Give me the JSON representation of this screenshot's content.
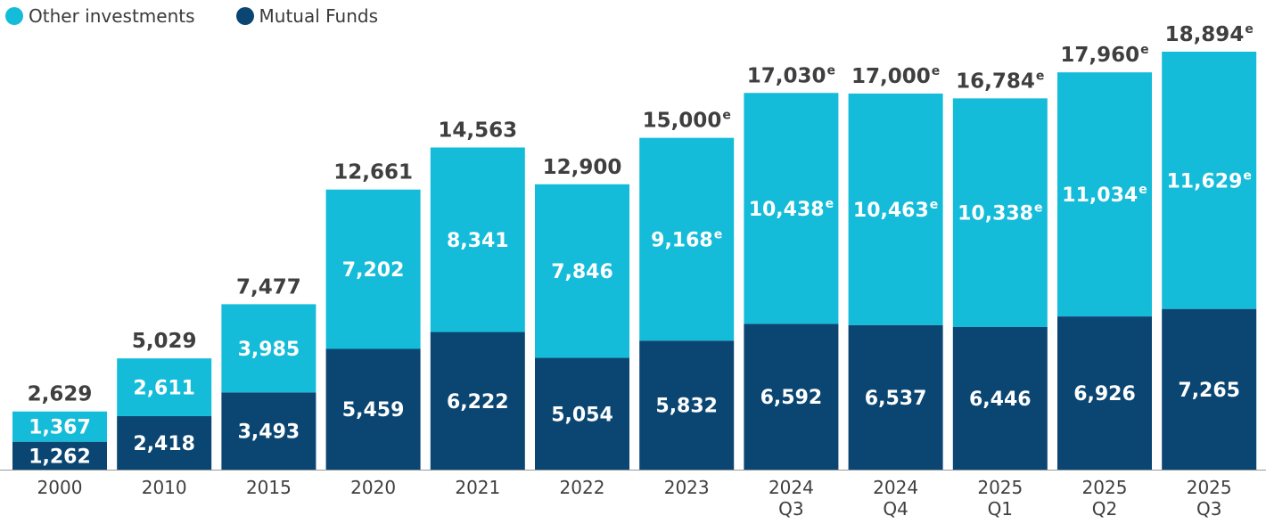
{
  "colors": {
    "other": "#14bcd9",
    "mutual": "#0b4672",
    "axis": "#9a9a9a"
  },
  "legend": [
    {
      "label": "Other investments",
      "color_key": "other"
    },
    {
      "label": "Mutual Funds",
      "color_key": "mutual"
    }
  ],
  "chart_data": {
    "type": "bar",
    "stacked": true,
    "title": "",
    "xlabel": "",
    "ylabel": "",
    "ylim": [
      0,
      19000
    ],
    "grid": false,
    "legend_position": "top-left",
    "estimate_marker": "e",
    "categories": [
      [
        "2000"
      ],
      [
        "2010"
      ],
      [
        "2015"
      ],
      [
        "2020"
      ],
      [
        "2021"
      ],
      [
        "2022"
      ],
      [
        "2023"
      ],
      [
        "2024",
        "Q3"
      ],
      [
        "2024",
        "Q4"
      ],
      [
        "2025",
        "Q1"
      ],
      [
        "2025",
        "Q2"
      ],
      [
        "2025",
        "Q3"
      ]
    ],
    "series": [
      {
        "name": "Mutual Funds",
        "values": [
          1262,
          2418,
          3493,
          5459,
          6222,
          5054,
          5832,
          6592,
          6537,
          6446,
          6926,
          7265
        ],
        "labels": [
          "1,262",
          "2,418",
          "3,493",
          "5,459",
          "6,222",
          "5,054",
          "5,832",
          "6,592",
          "6,537",
          "6,446",
          "6,926",
          "7,265"
        ],
        "estimated": [
          false,
          false,
          false,
          false,
          false,
          false,
          false,
          false,
          false,
          false,
          false,
          false
        ]
      },
      {
        "name": "Other investments",
        "values": [
          1367,
          2611,
          3985,
          7202,
          8341,
          7846,
          9168,
          10438,
          10463,
          10338,
          11034,
          11629
        ],
        "labels": [
          "1,367",
          "2,611",
          "3,985",
          "7,202",
          "8,341",
          "7,846",
          "9,168",
          "10,438",
          "10,463",
          "10,338",
          "11,034",
          "11,629"
        ],
        "estimated": [
          false,
          false,
          false,
          false,
          false,
          false,
          true,
          true,
          true,
          true,
          true,
          true
        ]
      }
    ],
    "totals": [
      2629,
      5029,
      7477,
      12661,
      14563,
      12900,
      15000,
      17030,
      17000,
      16784,
      17960,
      18894
    ],
    "total_labels": [
      "2,629",
      "5,029",
      "7,477",
      "12,661",
      "14,563",
      "12,900",
      "15,000",
      "17,030",
      "17,000",
      "16,784",
      "17,960",
      "18,894"
    ],
    "total_estimated": [
      false,
      false,
      false,
      false,
      false,
      false,
      true,
      true,
      true,
      true,
      true,
      true
    ]
  }
}
